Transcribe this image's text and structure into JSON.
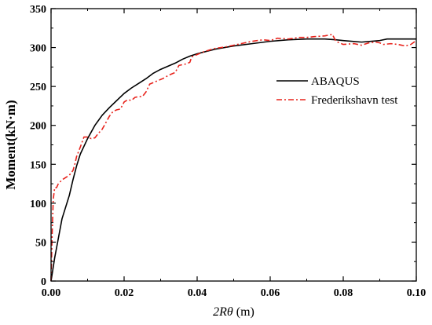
{
  "chart_data": {
    "type": "line",
    "title": "",
    "xlabel": {
      "italic": "2Rθ",
      "unit": " (m)"
    },
    "ylabel": "Moment(kN·m)",
    "xlim": [
      0,
      0.1
    ],
    "ylim": [
      0,
      350
    ],
    "x_ticks": [
      "0.00",
      "0.02",
      "0.04",
      "0.06",
      "0.08",
      "0.10"
    ],
    "y_ticks": [
      "0",
      "50",
      "100",
      "150",
      "200",
      "250",
      "300",
      "350"
    ],
    "grid": false,
    "legend_position": "right",
    "series": [
      {
        "name": "ABAQUS",
        "color": "#000000",
        "style": "solid",
        "points": [
          [
            0.0,
            0
          ],
          [
            0.001,
            30
          ],
          [
            0.002,
            55
          ],
          [
            0.003,
            80
          ],
          [
            0.004,
            95
          ],
          [
            0.005,
            110
          ],
          [
            0.006,
            130
          ],
          [
            0.007,
            148
          ],
          [
            0.008,
            163
          ],
          [
            0.01,
            183
          ],
          [
            0.012,
            200
          ],
          [
            0.014,
            213
          ],
          [
            0.016,
            223
          ],
          [
            0.018,
            232
          ],
          [
            0.02,
            241
          ],
          [
            0.022,
            248
          ],
          [
            0.024,
            254
          ],
          [
            0.026,
            260
          ],
          [
            0.028,
            267
          ],
          [
            0.03,
            272
          ],
          [
            0.032,
            276
          ],
          [
            0.034,
            280
          ],
          [
            0.036,
            285
          ],
          [
            0.038,
            289
          ],
          [
            0.04,
            292
          ],
          [
            0.045,
            298
          ],
          [
            0.05,
            302
          ],
          [
            0.055,
            305
          ],
          [
            0.06,
            308
          ],
          [
            0.065,
            310
          ],
          [
            0.07,
            311
          ],
          [
            0.075,
            311
          ],
          [
            0.078,
            310
          ],
          [
            0.08,
            309
          ],
          [
            0.085,
            307
          ],
          [
            0.09,
            309
          ],
          [
            0.092,
            311
          ],
          [
            0.095,
            311
          ],
          [
            0.1,
            311
          ]
        ]
      },
      {
        "name": "Frederikshavn test",
        "color": "#e8231c",
        "style": "dash-dot",
        "points": [
          [
            0.0,
            0
          ],
          [
            0.0003,
            60
          ],
          [
            0.0006,
            105
          ],
          [
            0.001,
            120
          ],
          [
            0.0015,
            120
          ],
          [
            0.002,
            125
          ],
          [
            0.003,
            130
          ],
          [
            0.004,
            133
          ],
          [
            0.005,
            136
          ],
          [
            0.006,
            142
          ],
          [
            0.0065,
            150
          ],
          [
            0.007,
            160
          ],
          [
            0.008,
            172
          ],
          [
            0.009,
            185
          ],
          [
            0.01,
            185
          ],
          [
            0.011,
            183
          ],
          [
            0.012,
            184
          ],
          [
            0.013,
            190
          ],
          [
            0.014,
            195
          ],
          [
            0.016,
            212
          ],
          [
            0.017,
            218
          ],
          [
            0.018,
            220
          ],
          [
            0.019,
            221
          ],
          [
            0.02,
            230
          ],
          [
            0.021,
            233
          ],
          [
            0.022,
            232
          ],
          [
            0.023,
            236
          ],
          [
            0.024,
            237
          ],
          [
            0.025,
            237
          ],
          [
            0.026,
            243
          ],
          [
            0.027,
            253
          ],
          [
            0.029,
            257
          ],
          [
            0.03,
            259
          ],
          [
            0.031,
            261
          ],
          [
            0.032,
            264
          ],
          [
            0.033,
            266
          ],
          [
            0.034,
            268
          ],
          [
            0.035,
            277
          ],
          [
            0.036,
            278
          ],
          [
            0.037,
            279
          ],
          [
            0.038,
            281
          ],
          [
            0.0385,
            288
          ],
          [
            0.04,
            291
          ],
          [
            0.042,
            295
          ],
          [
            0.045,
            299
          ],
          [
            0.048,
            301
          ],
          [
            0.05,
            303
          ],
          [
            0.055,
            308
          ],
          [
            0.058,
            310
          ],
          [
            0.06,
            309
          ],
          [
            0.062,
            312
          ],
          [
            0.065,
            311
          ],
          [
            0.068,
            313
          ],
          [
            0.07,
            313
          ],
          [
            0.072,
            314
          ],
          [
            0.075,
            315
          ],
          [
            0.077,
            317
          ],
          [
            0.078,
            308
          ],
          [
            0.08,
            304
          ],
          [
            0.083,
            305
          ],
          [
            0.085,
            303
          ],
          [
            0.087,
            306
          ],
          [
            0.089,
            307
          ],
          [
            0.09,
            306
          ],
          [
            0.091,
            304
          ],
          [
            0.093,
            305
          ],
          [
            0.095,
            304
          ],
          [
            0.097,
            302
          ],
          [
            0.0985,
            304
          ],
          [
            0.1,
            309
          ]
        ]
      }
    ]
  }
}
